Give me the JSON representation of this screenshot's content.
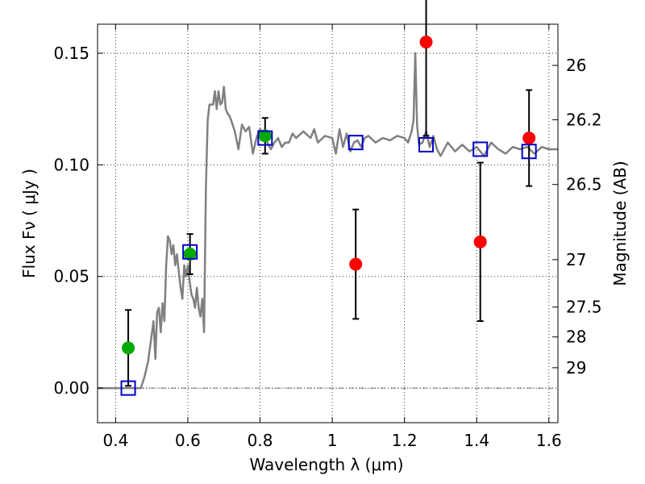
{
  "chart_data": {
    "type": "scatter",
    "xlabel": "Wavelength  λ (μm)",
    "ylabel": "Flux  Fν  ( μJy )",
    "y2label": "Magnitude (AB)",
    "xlim": [
      0.35,
      1.625
    ],
    "ylim": [
      -0.0155,
      0.163
    ],
    "grid": true,
    "x_ticks": [
      0.4,
      0.6,
      0.8,
      1.0,
      1.2,
      1.4,
      1.6
    ],
    "x_tick_labels": [
      "0.4",
      "0.6",
      "0.8",
      "1",
      "1.2",
      "1.4",
      "1.6"
    ],
    "y_ticks": [
      0.0,
      0.05,
      0.1,
      0.15
    ],
    "y_tick_labels": [
      "0.00",
      "0.05",
      "0.10",
      "0.15"
    ],
    "y2_ticks": [
      {
        "mag": 26,
        "label": "26"
      },
      {
        "mag": 26.2,
        "label": "26.2"
      },
      {
        "mag": 26.5,
        "label": "26.5"
      },
      {
        "mag": 27,
        "label": "27"
      },
      {
        "mag": 27.5,
        "label": "27.5"
      },
      {
        "mag": 28,
        "label": "28"
      },
      {
        "mag": 29,
        "label": "29"
      }
    ],
    "colors": {
      "green": "#00aa00",
      "red": "#ff0000",
      "model_box": "#0000cc",
      "spectrum": "#808080",
      "errorbar": "#000000"
    },
    "series": [
      {
        "marker": "circle",
        "color": "#00aa00",
        "x": [
          0.435,
          0.606,
          0.814
        ],
        "y": [
          0.018,
          0.06,
          0.113
        ],
        "yerr": [
          0.017,
          0.009,
          0.008
        ]
      },
      {
        "marker": "circle",
        "color": "#ff0000",
        "x": [
          1.065,
          1.26,
          1.41,
          1.545
        ],
        "y": [
          0.0555,
          0.155,
          0.0655,
          0.112
        ],
        "yerr": [
          0.0245,
          0.042,
          0.0355,
          0.0215
        ]
      },
      {
        "marker": "open-square",
        "color": "#0000cc",
        "x": [
          0.435,
          0.606,
          0.814,
          1.065,
          1.26,
          1.41,
          1.545
        ],
        "y": [
          0.0,
          0.061,
          0.112,
          0.11,
          0.109,
          0.107,
          0.106
        ]
      }
    ],
    "spectrum": {
      "color": "#808080",
      "x": [
        0.35,
        0.47,
        0.48,
        0.49,
        0.5,
        0.505,
        0.51,
        0.515,
        0.52,
        0.525,
        0.53,
        0.535,
        0.54,
        0.545,
        0.55,
        0.555,
        0.56,
        0.565,
        0.57,
        0.575,
        0.58,
        0.585,
        0.59,
        0.595,
        0.6,
        0.605,
        0.61,
        0.615,
        0.62,
        0.625,
        0.63,
        0.635,
        0.64,
        0.645,
        0.65,
        0.655,
        0.66,
        0.67,
        0.675,
        0.68,
        0.685,
        0.69,
        0.695,
        0.7,
        0.705,
        0.71,
        0.715,
        0.72,
        0.73,
        0.74,
        0.75,
        0.76,
        0.77,
        0.78,
        0.79,
        0.8,
        0.81,
        0.82,
        0.83,
        0.84,
        0.85,
        0.86,
        0.87,
        0.88,
        0.89,
        0.9,
        0.92,
        0.94,
        0.95,
        0.96,
        0.98,
        1.0,
        1.01,
        1.02,
        1.03,
        1.04,
        1.05,
        1.06,
        1.07,
        1.08,
        1.09,
        1.1,
        1.12,
        1.14,
        1.16,
        1.18,
        1.2,
        1.21,
        1.22,
        1.225,
        1.23,
        1.235,
        1.24,
        1.25,
        1.26,
        1.27,
        1.28,
        1.29,
        1.3,
        1.32,
        1.34,
        1.36,
        1.38,
        1.4,
        1.42,
        1.44,
        1.46,
        1.48,
        1.5,
        1.52,
        1.54,
        1.56,
        1.58,
        1.6,
        1.625
      ],
      "y": [
        0.0,
        0.0,
        0.005,
        0.012,
        0.024,
        0.03,
        0.013,
        0.034,
        0.036,
        0.025,
        0.038,
        0.03,
        0.055,
        0.068,
        0.066,
        0.06,
        0.064,
        0.055,
        0.06,
        0.052,
        0.045,
        0.04,
        0.055,
        0.05,
        0.055,
        0.048,
        0.042,
        0.04,
        0.036,
        0.045,
        0.036,
        0.032,
        0.04,
        0.025,
        0.09,
        0.12,
        0.127,
        0.127,
        0.133,
        0.125,
        0.133,
        0.127,
        0.128,
        0.135,
        0.125,
        0.123,
        0.122,
        0.12,
        0.115,
        0.107,
        0.118,
        0.115,
        0.117,
        0.105,
        0.112,
        0.116,
        0.114,
        0.11,
        0.107,
        0.11,
        0.112,
        0.108,
        0.11,
        0.11,
        0.114,
        0.112,
        0.115,
        0.112,
        0.116,
        0.11,
        0.113,
        0.112,
        0.105,
        0.116,
        0.108,
        0.114,
        0.106,
        0.11,
        0.111,
        0.108,
        0.112,
        0.113,
        0.11,
        0.112,
        0.111,
        0.113,
        0.112,
        0.11,
        0.115,
        0.12,
        0.15,
        0.118,
        0.109,
        0.11,
        0.115,
        0.108,
        0.113,
        0.107,
        0.104,
        0.11,
        0.106,
        0.109,
        0.106,
        0.108,
        0.104,
        0.11,
        0.107,
        0.105,
        0.108,
        0.107,
        0.108,
        0.105,
        0.108,
        0.107,
        0.107
      ]
    }
  }
}
